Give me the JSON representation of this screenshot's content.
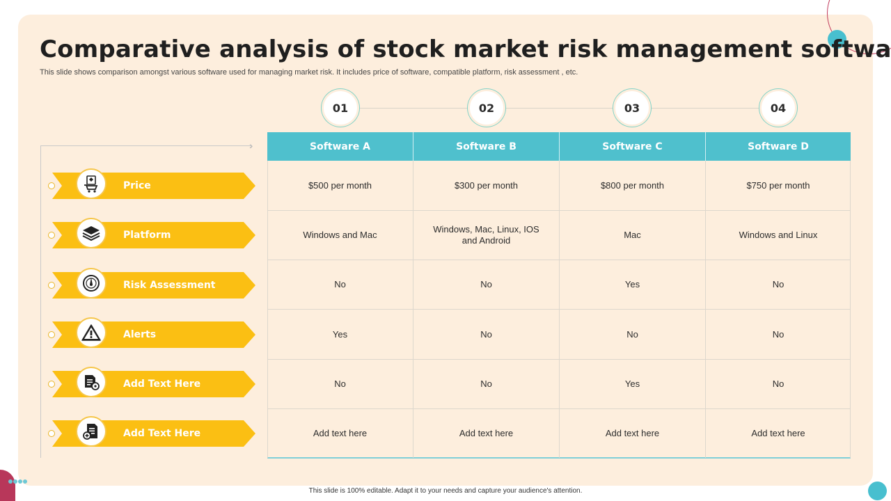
{
  "title": "Comparative analysis of stock market risk management software",
  "subtitle": "This slide shows comparison amongst various software used for  managing market risk. It includes price of software, compatible platform, risk assessment , etc.",
  "numbers": [
    "01",
    "02",
    "03",
    "04"
  ],
  "columns": [
    "Software A",
    "Software B",
    "Software C",
    "Software D"
  ],
  "rows": [
    {
      "label": "Price",
      "icon": "shopping-cart-icon",
      "cells": [
        "$500  per month",
        "$300  per month",
        "$800  per month",
        "$750  per month"
      ]
    },
    {
      "label": "Platform",
      "icon": "layers-icon",
      "cells": [
        "Windows and Mac",
        "Windows, Mac, Linux, IOS and Android",
        "Mac",
        "Windows and Linux"
      ]
    },
    {
      "label": "Risk Assessment",
      "icon": "gauge-icon",
      "cells": [
        "No",
        "No",
        "Yes",
        "No"
      ]
    },
    {
      "label": "Alerts",
      "icon": "warning-icon",
      "cells": [
        "Yes",
        "No",
        "No",
        "No"
      ]
    },
    {
      "label": "Add Text Here",
      "icon": "document-settings-icon",
      "cells": [
        "No",
        "No",
        "Yes",
        "No"
      ]
    },
    {
      "label": "Add Text Here",
      "icon": "document-add-icon",
      "cells": [
        "Add text here",
        "Add text here",
        "Add text here",
        "Add text here"
      ]
    }
  ],
  "footer": "This slide is 100% editable.  Adapt it to your needs and capture your audience's attention.",
  "colors": {
    "panel": "#fdeedd",
    "header": "#4fc0cd",
    "ribbon": "#fbbf13",
    "accent": "#b8375a"
  }
}
